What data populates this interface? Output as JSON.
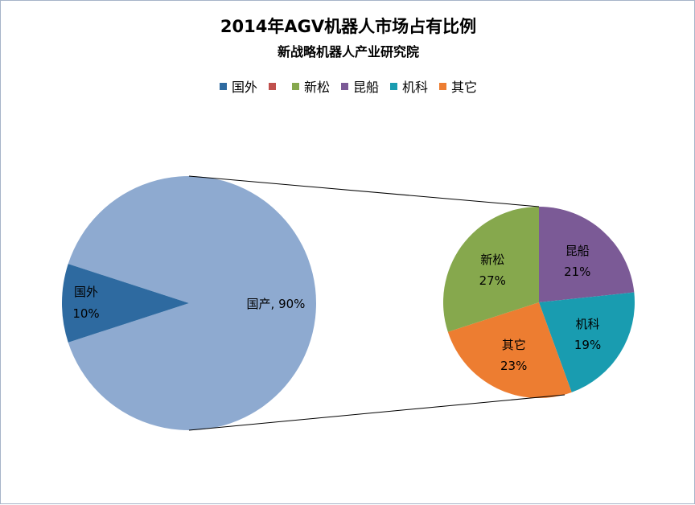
{
  "title": "2014年AGV机器人市场占有比例",
  "subtitle": "新战略机器人产业研究院",
  "legend": [
    {
      "label": "国外",
      "color": "#2e6aa0"
    },
    {
      "label": "",
      "color": "#c0504d"
    },
    {
      "label": "新松",
      "color": "#86a84d"
    },
    {
      "label": "昆船",
      "color": "#7b5a96"
    },
    {
      "label": "机科",
      "color": "#199cb0"
    },
    {
      "label": "其它",
      "color": "#ed7d31"
    }
  ],
  "chart_data": [
    {
      "type": "pie",
      "slices": [
        {
          "label": "国外",
          "value": 10,
          "display": "10%",
          "color": "#2e6aa0"
        },
        {
          "label": "国产",
          "value": 90,
          "display": "国产, 90%",
          "color": "#8eaad0"
        }
      ]
    },
    {
      "type": "pie",
      "slices": [
        {
          "label": "新松",
          "value": 27,
          "display": "27%",
          "color": "#86a84d"
        },
        {
          "label": "昆船",
          "value": 21,
          "display": "21%",
          "color": "#7b5a96"
        },
        {
          "label": "机科",
          "value": 19,
          "display": "19%",
          "color": "#199cb0"
        },
        {
          "label": "其它",
          "value": 23,
          "display": "23%",
          "color": "#ed7d31"
        }
      ]
    }
  ]
}
